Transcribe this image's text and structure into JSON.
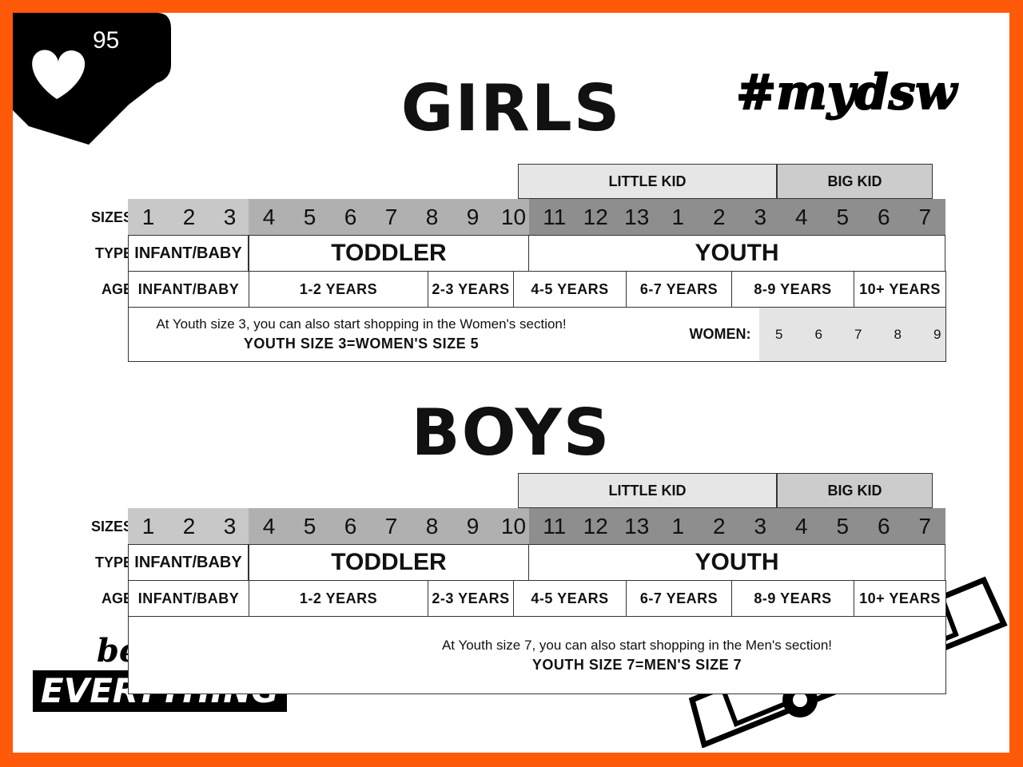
{
  "badge": {
    "icon": "heart-icon",
    "count": "95"
  },
  "hashtag": "#mydsw",
  "logo": {
    "line1": "best of",
    "line2": "EVERYTHING"
  },
  "colors": {
    "border": "#ff5a0a",
    "infant": "#c8c8c8",
    "toddler": "#b0b0b0",
    "youth": "#8e8e8e",
    "little_kid": "#e6e6e6",
    "big_kid": "#cccccc",
    "women": "#e4e4e4"
  },
  "row_labels": {
    "sizes": "SIZES",
    "type": "TYPE",
    "age": "AGE"
  },
  "charts": [
    {
      "title": "GIRLS",
      "groups": {
        "little_kid": "LITTLE KID",
        "big_kid": "BIG KID"
      },
      "sizes": {
        "infant": [
          "1",
          "2",
          "3"
        ],
        "toddler": [
          "4",
          "5",
          "6",
          "7",
          "8",
          "9",
          "10"
        ],
        "youth": [
          "11",
          "12",
          "13",
          "1",
          "2",
          "3",
          "4",
          "5",
          "6",
          "7"
        ]
      },
      "types": [
        "INFANT/BABY",
        "TODDLER",
        "YOUTH"
      ],
      "ages": [
        "INFANT/BABY",
        "1-2 YEARS",
        "2-3 YEARS",
        "4-5 YEARS",
        "6-7 YEARS",
        "8-9 YEARS",
        "10+ YEARS"
      ],
      "note": {
        "line1": "At Youth size 3, you can also start shopping in the Women's section!",
        "line2": "YOUTH SIZE 3=WOMEN'S SIZE 5",
        "women_label": "WOMEN:",
        "women_sizes": [
          "5",
          "6",
          "7",
          "8",
          "9"
        ]
      }
    },
    {
      "title": "BOYS",
      "groups": {
        "little_kid": "LITTLE KID",
        "big_kid": "BIG KID"
      },
      "sizes": {
        "infant": [
          "1",
          "2",
          "3"
        ],
        "toddler": [
          "4",
          "5",
          "6",
          "7",
          "8",
          "9",
          "10"
        ],
        "youth": [
          "11",
          "12",
          "13",
          "1",
          "2",
          "3",
          "4",
          "5",
          "6",
          "7"
        ]
      },
      "types": [
        "INFANT/BABY",
        "TODDLER",
        "YOUTH"
      ],
      "ages": [
        "INFANT/BABY",
        "1-2 YEARS",
        "2-3 YEARS",
        "4-5 YEARS",
        "6-7 YEARS",
        "8-9 YEARS",
        "10+ YEARS"
      ],
      "note": {
        "line1": "At Youth size 7, you can also start shopping in the Men's section!",
        "line2": "YOUTH SIZE 7=MEN'S SIZE 7"
      }
    }
  ]
}
